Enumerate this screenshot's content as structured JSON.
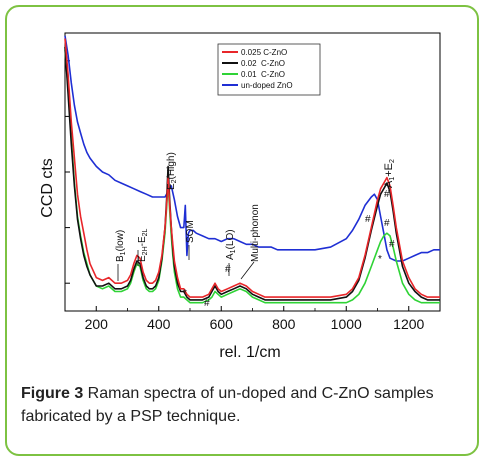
{
  "chart_data": {
    "type": "line",
    "xlabel": "rel. 1/cm",
    "ylabel": "CCD cts",
    "xlim": [
      100,
      1300
    ],
    "ylim": [
      0,
      100
    ],
    "x_ticks": [
      200,
      400,
      600,
      800,
      1000,
      1200
    ],
    "grid": false,
    "legend_position": "top-center",
    "series": [
      {
        "name": "0.025 C-ZnO",
        "color": "#e8262a",
        "x": [
          100,
          110,
          120,
          130,
          140,
          150,
          160,
          170,
          180,
          200,
          220,
          240,
          260,
          280,
          300,
          310,
          320,
          330,
          340,
          350,
          360,
          370,
          380,
          390,
          400,
          410,
          420,
          425,
          430,
          435,
          440,
          445,
          450,
          460,
          470,
          480,
          490,
          500,
          520,
          540,
          560,
          570,
          580,
          590,
          600,
          620,
          640,
          660,
          680,
          700,
          720,
          740,
          760,
          780,
          800,
          850,
          900,
          950,
          1000,
          1020,
          1040,
          1060,
          1080,
          1100,
          1110,
          1120,
          1130,
          1140,
          1150,
          1160,
          1180,
          1200,
          1220,
          1240,
          1260,
          1280,
          1300
        ],
        "y": [
          98,
          85,
          68,
          55,
          42,
          34,
          28,
          22,
          17,
          12,
          11,
          12,
          10,
          10,
          11,
          13,
          17,
          20,
          19,
          14,
          11,
          10,
          10,
          11,
          14,
          20,
          30,
          38,
          48,
          38,
          30,
          24,
          18,
          12,
          8,
          8,
          6,
          5,
          5,
          5,
          6,
          8,
          10,
          8,
          7,
          8,
          9,
          10,
          9,
          7,
          6,
          5,
          5,
          5,
          5,
          5,
          5,
          5,
          6,
          8,
          12,
          20,
          30,
          40,
          44,
          46,
          48,
          45,
          38,
          30,
          18,
          12,
          8,
          6,
          5,
          5,
          5
        ]
      },
      {
        "name": "0.02  C-ZnO",
        "color": "#111111",
        "x": [
          100,
          110,
          120,
          130,
          140,
          150,
          160,
          170,
          180,
          200,
          220,
          240,
          260,
          280,
          300,
          310,
          320,
          330,
          340,
          350,
          360,
          370,
          380,
          390,
          400,
          410,
          420,
          425,
          430,
          435,
          440,
          445,
          450,
          460,
          470,
          480,
          490,
          500,
          520,
          540,
          560,
          570,
          580,
          590,
          600,
          620,
          640,
          660,
          680,
          700,
          720,
          740,
          760,
          780,
          800,
          850,
          900,
          950,
          1000,
          1020,
          1040,
          1060,
          1080,
          1100,
          1110,
          1120,
          1130,
          1140,
          1150,
          1160,
          1180,
          1200,
          1220,
          1240,
          1260,
          1280,
          1300
        ],
        "y": [
          95,
          78,
          60,
          45,
          33,
          26,
          20,
          16,
          13,
          9,
          9,
          10,
          8,
          8,
          9,
          11,
          15,
          18,
          17,
          12,
          9,
          8,
          8,
          9,
          12,
          19,
          30,
          40,
          52,
          40,
          30,
          22,
          16,
          10,
          7,
          7,
          5,
          4,
          4,
          4,
          5,
          7,
          9,
          7,
          6,
          7,
          8,
          9,
          8,
          6,
          5,
          4,
          4,
          4,
          4,
          4,
          4,
          4,
          5,
          7,
          11,
          19,
          29,
          38,
          42,
          44,
          46,
          43,
          36,
          28,
          16,
          10,
          7,
          5,
          4,
          4,
          4
        ]
      },
      {
        "name": "0.01  C-ZnO",
        "color": "#2fd336",
        "x": [
          100,
          110,
          120,
          130,
          140,
          150,
          160,
          170,
          180,
          200,
          220,
          240,
          260,
          280,
          300,
          310,
          320,
          330,
          340,
          350,
          360,
          370,
          380,
          390,
          400,
          410,
          420,
          425,
          430,
          435,
          440,
          445,
          450,
          460,
          470,
          480,
          490,
          500,
          520,
          540,
          560,
          570,
          580,
          590,
          600,
          620,
          640,
          660,
          680,
          700,
          720,
          740,
          760,
          780,
          800,
          850,
          900,
          950,
          1000,
          1020,
          1040,
          1060,
          1080,
          1100,
          1110,
          1120,
          1130,
          1140,
          1150,
          1160,
          1180,
          1200,
          1220,
          1240,
          1260,
          1280,
          1300
        ],
        "y": [
          94,
          80,
          62,
          46,
          34,
          27,
          21,
          17,
          13,
          9,
          8,
          9,
          7,
          7,
          8,
          10,
          14,
          17,
          16,
          11,
          8,
          7,
          7,
          8,
          11,
          18,
          28,
          37,
          46,
          36,
          27,
          20,
          14,
          8,
          5,
          5,
          4,
          3,
          3,
          3,
          4,
          5,
          7,
          6,
          5,
          6,
          7,
          8,
          7,
          5,
          4,
          3,
          3,
          3,
          3,
          3,
          3,
          3,
          3,
          4,
          6,
          10,
          16,
          22,
          25,
          27,
          28,
          27,
          23,
          18,
          10,
          6,
          4,
          3,
          3,
          3,
          3
        ]
      },
      {
        "name": "un-doped ZnO",
        "color": "#1f2fd4",
        "x": [
          100,
          110,
          120,
          130,
          140,
          150,
          160,
          170,
          180,
          200,
          220,
          240,
          260,
          280,
          300,
          320,
          340,
          360,
          380,
          400,
          420,
          430,
          440,
          450,
          460,
          470,
          480,
          485,
          490,
          495,
          500,
          510,
          520,
          540,
          560,
          580,
          600,
          620,
          640,
          660,
          680,
          700,
          720,
          740,
          760,
          780,
          800,
          850,
          900,
          950,
          1000,
          1020,
          1040,
          1060,
          1080,
          1090,
          1100,
          1110,
          1120,
          1130,
          1140,
          1160,
          1180,
          1200,
          1220,
          1240,
          1260,
          1280,
          1300
        ],
        "y": [
          99,
          92,
          82,
          74,
          68,
          64,
          60,
          57,
          55,
          52,
          50,
          49,
          47,
          46,
          45,
          44,
          43,
          42,
          41,
          41,
          41,
          43,
          45,
          40,
          34,
          30,
          30,
          38,
          20,
          28,
          29,
          29,
          28,
          27,
          26,
          26,
          25,
          26,
          26,
          25,
          24,
          24,
          23,
          23,
          23,
          22,
          22,
          22,
          22,
          23,
          26,
          29,
          33,
          38,
          41,
          42,
          40,
          34,
          28,
          22,
          19,
          18,
          18,
          19,
          20,
          21,
          21,
          22,
          22
        ]
      }
    ],
    "annotations": [
      "B1(low)",
      "E2H-E2L",
      "E2(High)",
      "SOM",
      "A1(LO)",
      "Multi-phonon",
      "A1+E2",
      "#",
      "#",
      "#",
      "#",
      "#",
      "#",
      "*",
      "*"
    ]
  },
  "caption": {
    "label": "Figure 3",
    "text": " Raman spectra of un-doped and C-ZnO samples fabricated by a PSP technique."
  },
  "labels": {
    "b1_main": "B",
    "b1_sub": "1",
    "b1_rest": "(low)",
    "e2h_main": "E",
    "e2h_sub": "2H",
    "e2h_mid": "-E",
    "e2h_sub2": "2L",
    "e2high_main": "E",
    "e2high_sub": "2",
    "e2high_rest": "(High)",
    "som": "SOM",
    "a1lo_main": "A",
    "a1lo_sub": "1",
    "a1lo_rest": "(LO)",
    "multiphonon": "Multi-phonon",
    "a1e2_main": "A",
    "a1e2_sub": "1",
    "a1e2_rest": "+E",
    "a1e2_sub2": "2",
    "hash": "#",
    "star": "*"
  }
}
